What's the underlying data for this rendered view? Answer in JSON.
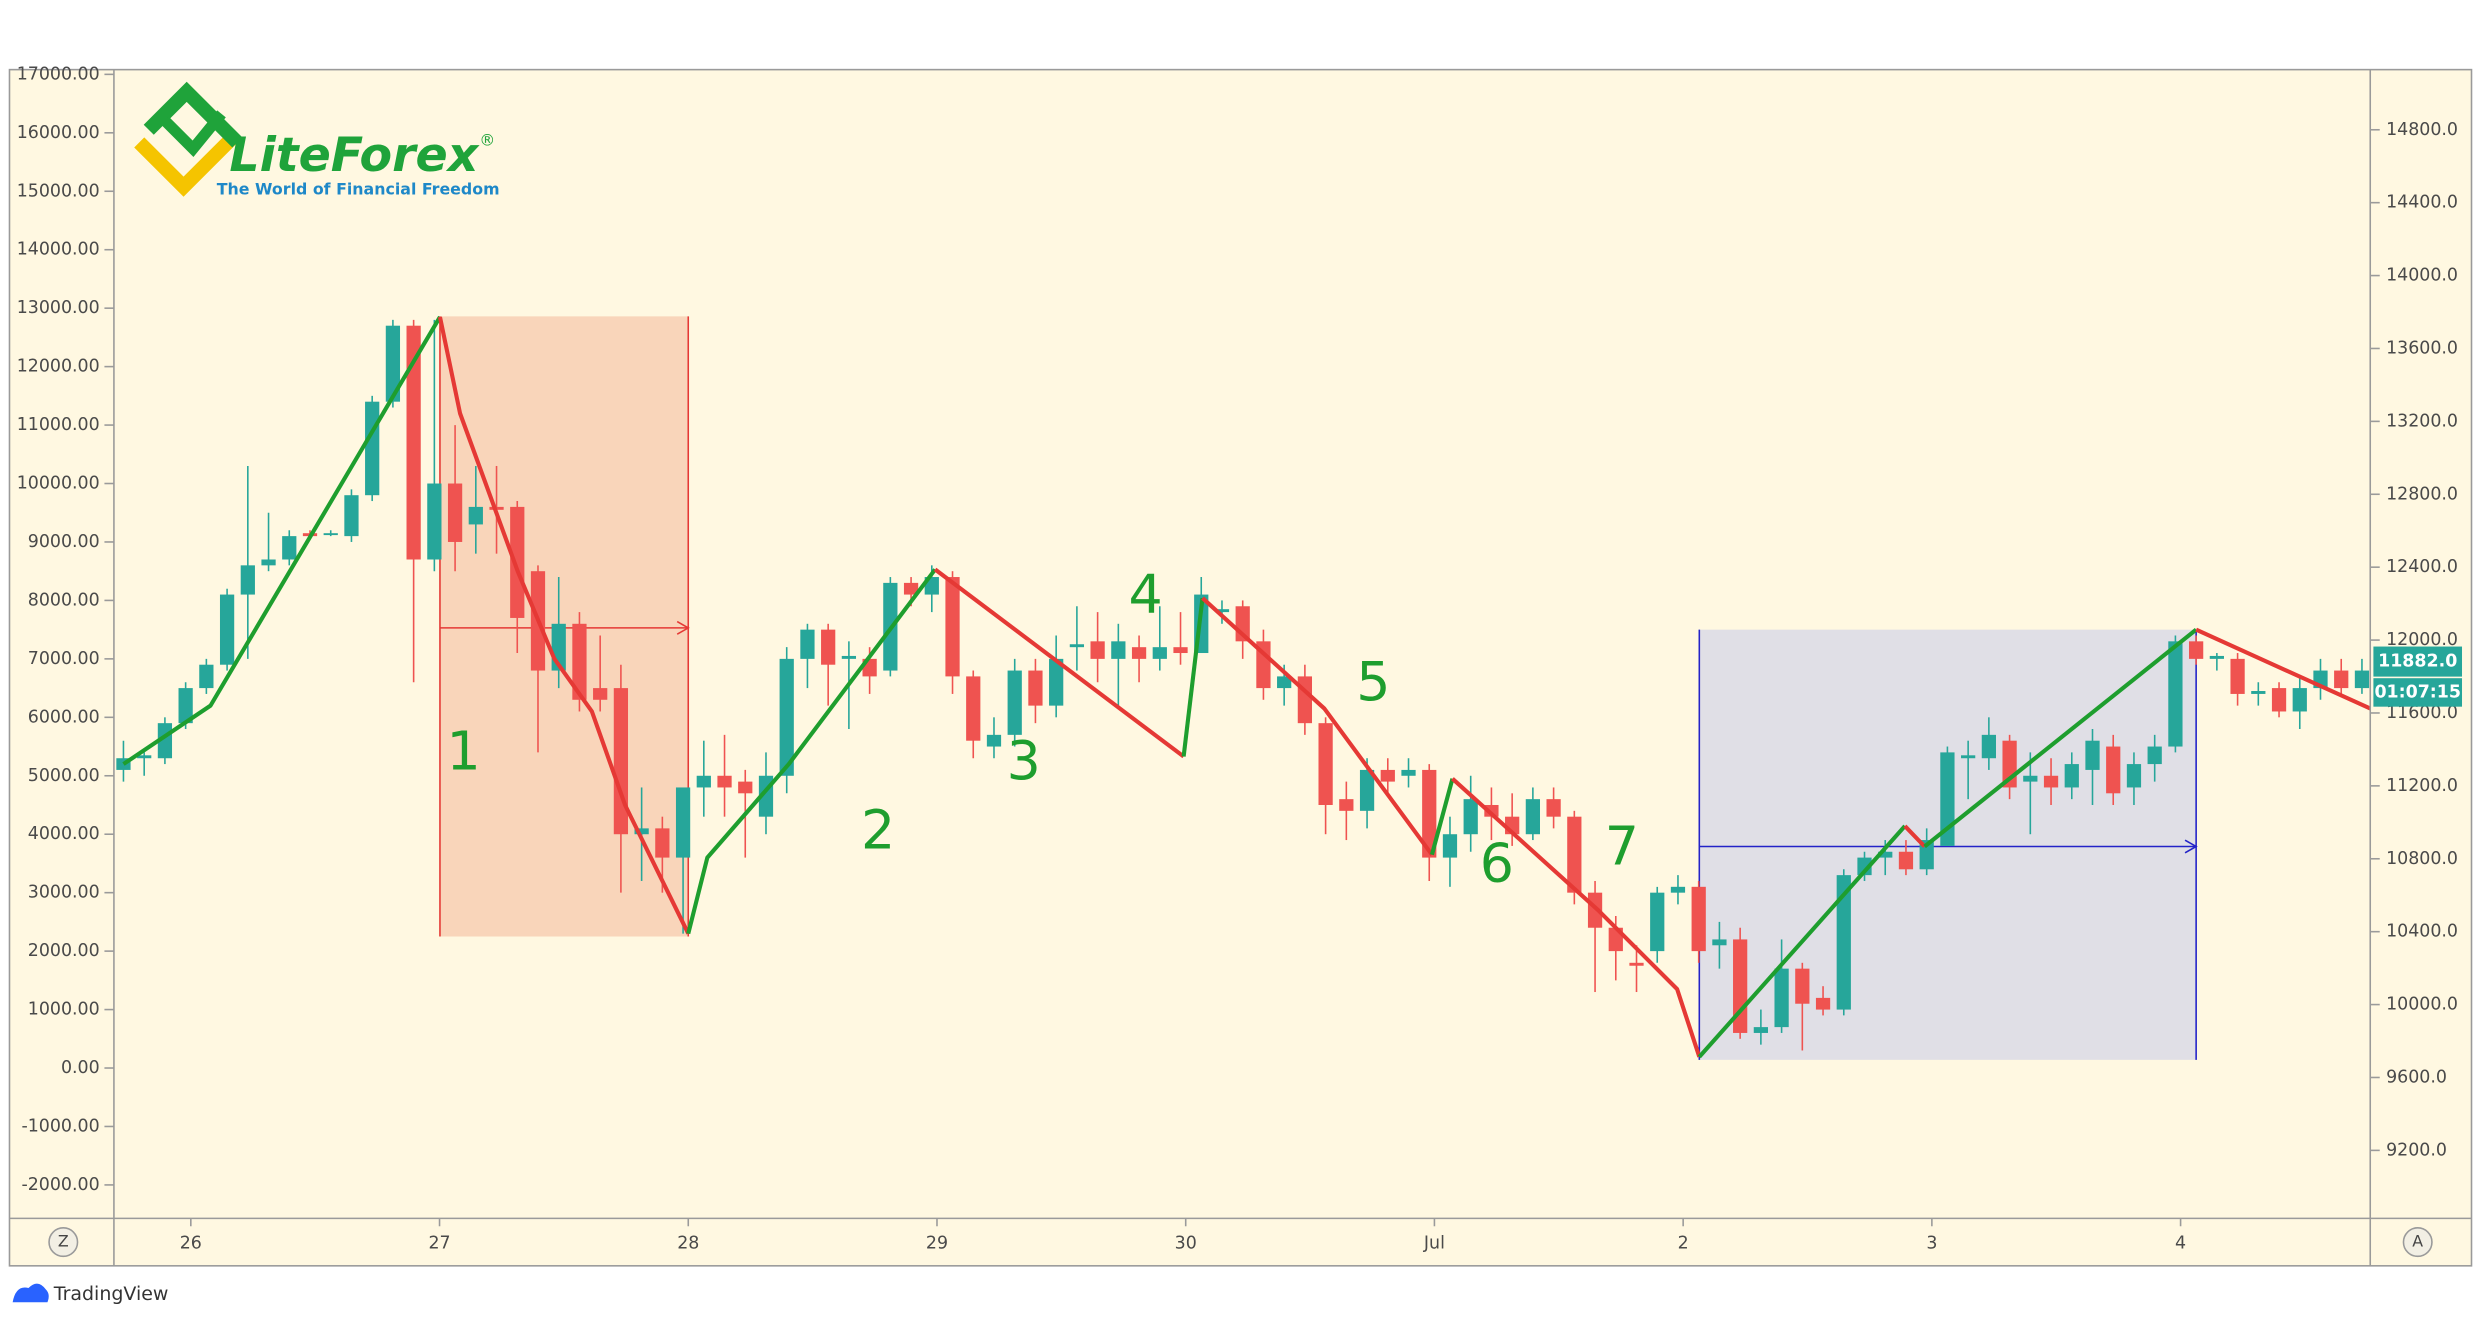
{
  "chart_data": {
    "type": "candlestick",
    "logo": {
      "name": "LiteForex",
      "mark": "®",
      "tagline": "The World of Financial Freedom"
    },
    "open": [
      5100,
      5300,
      5300,
      5900,
      6500,
      6900,
      8100,
      8600,
      8700,
      9150,
      9150,
      9100,
      9800,
      11400,
      12700,
      8700,
      10000,
      9300,
      9600,
      9600,
      8500,
      6800,
      7600,
      6500,
      6500,
      4000,
      4100,
      3600,
      4800,
      5000,
      4900,
      4300,
      5000,
      7000,
      7500,
      7000,
      7000,
      6800,
      8300,
      8100,
      8400,
      6700,
      5500,
      5700,
      6800,
      6200,
      7200,
      7300,
      7000,
      7200,
      7000,
      7200,
      7100,
      7800,
      7900,
      7300,
      6500,
      6700,
      5900,
      4600,
      4400,
      5100,
      5000,
      5100,
      3600,
      4000,
      4500,
      4300,
      4000,
      4600,
      4300,
      3000,
      2400,
      1800,
      2000,
      3000,
      3100,
      2100,
      2200,
      600,
      700,
      1700,
      1200,
      1000,
      3300,
      3600,
      3700,
      3400,
      3800,
      5300,
      5300,
      5600,
      4900,
      5000,
      4800,
      5100,
      5500,
      4800,
      5200,
      5500,
      7300,
      7000,
      7000,
      6400,
      6500,
      6100,
      6500,
      6800,
      6500
    ],
    "high": [
      5600,
      5400,
      6000,
      6600,
      7000,
      8200,
      10300,
      9500,
      9200,
      9200,
      9200,
      9900,
      11500,
      12800,
      12800,
      12800,
      11000,
      10300,
      10300,
      9700,
      8600,
      8400,
      7800,
      7400,
      6900,
      4800,
      4300,
      4800,
      5600,
      5700,
      5100,
      5400,
      7200,
      7600,
      7600,
      7300,
      7200,
      8400,
      8400,
      8600,
      8500,
      6800,
      6000,
      7000,
      7000,
      7400,
      7900,
      7800,
      7600,
      7400,
      7900,
      7800,
      8400,
      8000,
      8000,
      7500,
      6900,
      6900,
      6000,
      4900,
      5300,
      5300,
      5300,
      5200,
      4300,
      5000,
      4800,
      4700,
      4800,
      4800,
      4400,
      3200,
      2600,
      2100,
      3100,
      3300,
      3200,
      2500,
      2400,
      1000,
      2200,
      1800,
      1400,
      3400,
      3700,
      3900,
      3900,
      4100,
      5500,
      5600,
      6000,
      5700,
      5400,
      5300,
      5400,
      5800,
      5700,
      5400,
      5700,
      7400,
      7400,
      7100,
      7100,
      6600,
      6600,
      6700,
      7000,
      7000,
      7000
    ],
    "low": [
      4900,
      5000,
      5200,
      5800,
      6400,
      6800,
      7000,
      8500,
      8600,
      9050,
      9100,
      9000,
      9700,
      11300,
      6600,
      8500,
      8500,
      8800,
      8800,
      7100,
      5400,
      6500,
      6100,
      6100,
      3000,
      3200,
      3000,
      2300,
      4300,
      4300,
      3600,
      4000,
      4700,
      6500,
      6200,
      5800,
      6400,
      6700,
      7900,
      7800,
      6400,
      5300,
      5300,
      5500,
      5900,
      6000,
      6800,
      6600,
      6200,
      6600,
      6800,
      6900,
      7100,
      7600,
      7000,
      6300,
      6200,
      5700,
      4000,
      3900,
      4100,
      4700,
      4800,
      3200,
      3100,
      3700,
      3900,
      3800,
      3900,
      4100,
      2800,
      1300,
      1500,
      1300,
      1800,
      2800,
      1800,
      1700,
      500,
      400,
      600,
      300,
      900,
      900,
      3200,
      3300,
      3300,
      3300,
      3800,
      4600,
      5100,
      4600,
      4000,
      4500,
      4600,
      4500,
      4500,
      4500,
      4900,
      5400,
      6900,
      6800,
      6200,
      6200,
      6000,
      5800,
      6300,
      6400,
      6400
    ],
    "close": [
      5300,
      5350,
      5900,
      6500,
      6900,
      8100,
      8600,
      8700,
      9100,
      9100,
      9150,
      9800,
      11400,
      12700,
      8700,
      10000,
      9000,
      9600,
      9550,
      7700,
      6800,
      7600,
      6300,
      6300,
      4000,
      4100,
      3600,
      4800,
      5000,
      4800,
      4700,
      5000,
      7000,
      7500,
      6900,
      7050,
      6700,
      8300,
      8100,
      8400,
      6700,
      5600,
      5700,
      6800,
      6200,
      7000,
      7250,
      7000,
      7300,
      7000,
      7200,
      7100,
      8100,
      7850,
      7300,
      6500,
      6700,
      5900,
      4500,
      4400,
      5100,
      4900,
      5100,
      3600,
      4000,
      4600,
      4300,
      4000,
      4600,
      4300,
      3000,
      2400,
      2000,
      1750,
      3000,
      3100,
      2000,
      2200,
      600,
      700,
      1700,
      1100,
      1000,
      3300,
      3600,
      3700,
      3400,
      3900,
      5400,
      5350,
      5700,
      4800,
      5000,
      4800,
      5200,
      5600,
      4700,
      5200,
      5500,
      7300,
      7000,
      7050,
      6400,
      6450,
      6100,
      6500,
      6800,
      6500,
      6800
    ],
    "up_color": "#26a69a",
    "down_color": "#ef5350",
    "xlim": [
      -0.46,
      108.4
    ],
    "xticks": [
      {
        "value": 3.25,
        "label": "26"
      },
      {
        "value": 15.25,
        "label": "27"
      },
      {
        "value": 27.25,
        "label": "28"
      },
      {
        "value": 39.25,
        "label": "29"
      },
      {
        "value": 51.25,
        "label": "30"
      },
      {
        "value": 63.25,
        "label": "Jul"
      },
      {
        "value": 75.25,
        "label": "2"
      },
      {
        "value": 87.25,
        "label": "3"
      },
      {
        "value": 99.25,
        "label": "4"
      }
    ],
    "ylim": [
      -2572,
      17081
    ],
    "yticks": [
      {
        "value": -2000,
        "label": "-2000.00"
      },
      {
        "value": -1000,
        "label": "-1000.00"
      },
      {
        "value": 0,
        "label": "0.00"
      },
      {
        "value": 1000,
        "label": "1000.00"
      },
      {
        "value": 2000,
        "label": "2000.00"
      },
      {
        "value": 3000,
        "label": "3000.00"
      },
      {
        "value": 4000,
        "label": "4000.00"
      },
      {
        "value": 5000,
        "label": "5000.00"
      },
      {
        "value": 6000,
        "label": "6000.00"
      },
      {
        "value": 7000,
        "label": "7000.00"
      },
      {
        "value": 8000,
        "label": "8000.00"
      },
      {
        "value": 9000,
        "label": "9000.00"
      },
      {
        "value": 10000,
        "label": "10000.00"
      },
      {
        "value": 11000,
        "label": "11000.00"
      },
      {
        "value": 12000,
        "label": "12000.00"
      },
      {
        "value": 13000,
        "label": "13000.00"
      },
      {
        "value": 14000,
        "label": "14000.00"
      },
      {
        "value": 15000,
        "label": "15000.00"
      },
      {
        "value": 16000,
        "label": "16000.00"
      },
      {
        "value": 17000,
        "label": "17000.00"
      }
    ],
    "y2lim": [
      8827,
      15130
    ],
    "y2ticks": [
      {
        "value": 9200,
        "label": "9200.0"
      },
      {
        "value": 9600,
        "label": "9600.0"
      },
      {
        "value": 10000,
        "label": "10000.0"
      },
      {
        "value": 10400,
        "label": "10400.0"
      },
      {
        "value": 10800,
        "label": "10800.0"
      },
      {
        "value": 11200,
        "label": "11200.0"
      },
      {
        "value": 11600,
        "label": "11600.0"
      },
      {
        "value": 12000,
        "label": "12000.0"
      },
      {
        "value": 12400,
        "label": "12400.0"
      },
      {
        "value": 12800,
        "label": "12800.0"
      },
      {
        "value": 13200,
        "label": "13200.0"
      },
      {
        "value": 13600,
        "label": "13600.0"
      },
      {
        "value": 14000,
        "label": "14000.0"
      },
      {
        "value": 14400,
        "label": "14400.0"
      },
      {
        "value": 14800,
        "label": "14800.0"
      }
    ],
    "last_price": {
      "value": 11882,
      "label": "11882.0"
    },
    "countdown": "01:07:15",
    "zigzag": [
      {
        "color": "#1e9e2e",
        "x": [
          0,
          4.2,
          15.27
        ],
        "values": [
          5200,
          6200,
          12850
        ]
      },
      {
        "color": "#e53935",
        "x": [
          15.27,
          16.24,
          19.02,
          20.79,
          22.6,
          24.2,
          27.25
        ],
        "values": [
          12850,
          11200,
          8500,
          7000,
          6100,
          4500,
          2300
        ]
      },
      {
        "color": "#1e9e2e",
        "x": [
          27.25,
          28.17,
          32.1,
          39.16
        ],
        "values": [
          2300,
          3600,
          5200,
          8530
        ]
      },
      {
        "color": "#e53935",
        "x": [
          39.16,
          51.15
        ],
        "values": [
          8530,
          5330
        ]
      },
      {
        "color": "#1e9e2e",
        "x": [
          51.15,
          52.06
        ],
        "values": [
          5330,
          8040
        ]
      },
      {
        "color": "#e53935",
        "x": [
          52.06,
          57.94,
          63.13
        ],
        "values": [
          8040,
          6150,
          3650
        ]
      },
      {
        "color": "#1e9e2e",
        "x": [
          63.13,
          64.12
        ],
        "values": [
          3650,
          4950
        ]
      },
      {
        "color": "#e53935",
        "x": [
          64.12,
          71.15,
          74.96,
          76.03
        ],
        "values": [
          4950,
          2700,
          1350,
          190
        ]
      },
      {
        "color": "#1e9e2e",
        "x": [
          76.03,
          85.95
        ],
        "values": [
          190,
          4140
        ]
      },
      {
        "color": "#e53935",
        "x": [
          85.95,
          86.9
        ],
        "values": [
          4140,
          3790
        ]
      },
      {
        "color": "#1e9e2e",
        "x": [
          86.9,
          100.0
        ],
        "values": [
          3790,
          7500
        ]
      },
      {
        "color": "#e53935",
        "x": [
          100.0,
          108.4
        ],
        "values": [
          7500,
          6150
        ]
      }
    ],
    "boxes": [
      {
        "x": [
          15.27,
          27.25
        ],
        "y": [
          2250,
          12860
        ],
        "level": 7530,
        "fill": "#f8cfb3",
        "stroke": "#e53935"
      },
      {
        "x": [
          76.03,
          100.0
        ],
        "y": [
          140,
          7500
        ],
        "level": 3790,
        "fill": "#dadae6",
        "stroke": "#2323c8"
      }
    ],
    "wave_labels": [
      "1",
      "2",
      "3",
      "4",
      "5",
      "6",
      "7"
    ],
    "wave_color": "#1e9e2e",
    "background": "#fff8e1",
    "grid": false
  },
  "buttons": [
    "Z",
    "A"
  ],
  "footer": {
    "brand": "TradingView"
  }
}
